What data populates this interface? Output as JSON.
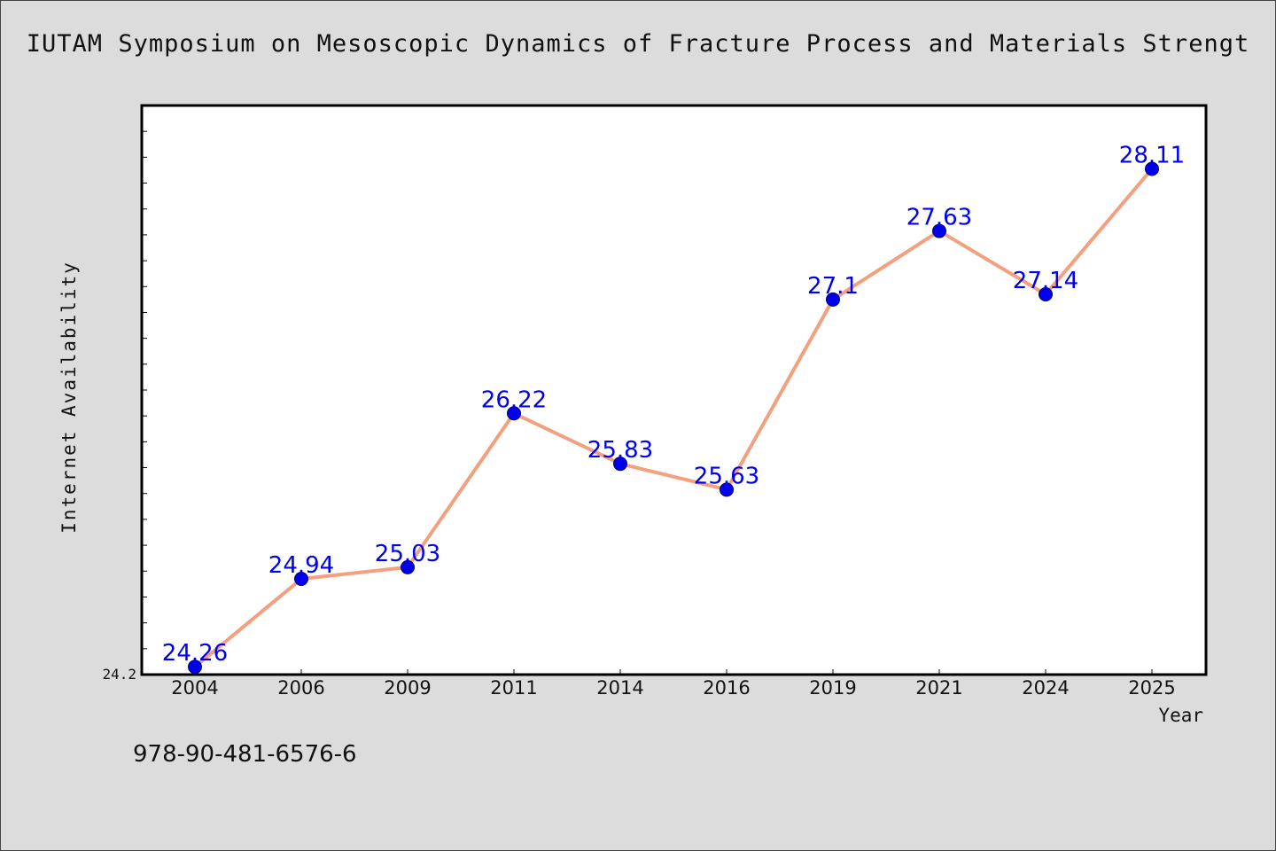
{
  "chart_data": {
    "type": "line",
    "title": "IUTAM Symposium on Mesoscopic Dynamics of Fracture Process and Materials Strengt",
    "xlabel": "Year",
    "ylabel": "Internet Availability",
    "categories": [
      "2004",
      "2006",
      "2009",
      "2011",
      "2014",
      "2016",
      "2019",
      "2021",
      "2024",
      "2025"
    ],
    "series": [
      {
        "values": [
          24.26,
          24.94,
          25.03,
          26.22,
          25.83,
          25.63,
          27.1,
          27.63,
          27.14,
          28.11
        ],
        "data_labels": [
          "24.26",
          "24.94",
          "25.03",
          "26.22",
          "25.83",
          "25.63",
          "27.1",
          "27.63",
          "27.14",
          "28.11"
        ]
      }
    ],
    "ylim": [
      24.2,
      28.6
    ],
    "y_tick_labels": [
      "24.2"
    ],
    "grid": false,
    "legend": "none",
    "colors": {
      "line": "#f4a07f",
      "marker": "#0000ee",
      "data_label": "#0000ee",
      "plot_background": "#ffffff",
      "figure_background": "#dcdcdc"
    }
  },
  "footer": {
    "code": "978-90-481-6576-6"
  }
}
